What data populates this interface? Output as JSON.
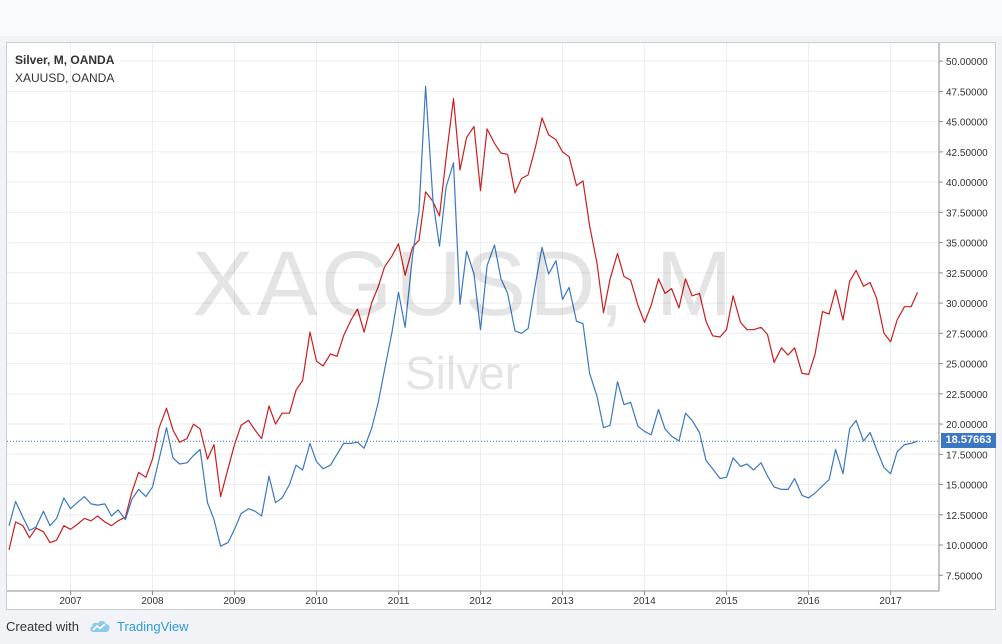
{
  "legend": {
    "series1": "Silver, M, OANDA",
    "series2": "XAUUSD, OANDA"
  },
  "watermark": {
    "symbol": "XAGUSD, M",
    "name": "Silver"
  },
  "price_badge": "18.57663",
  "footer": {
    "created_with": "Created with",
    "brand": "TradingView",
    "logo_icon": "tradingview-cloud-icon"
  },
  "colors": {
    "silver_line": "#3c78c2",
    "gold_line": "#cc1e1e",
    "badge": "#3c78c2",
    "brand": "#2d9bd8"
  },
  "chart_data": {
    "type": "line",
    "x_ticks": [
      "2007",
      "2008",
      "2009",
      "2010",
      "2011",
      "2012",
      "2013",
      "2014",
      "2015",
      "2016",
      "2017"
    ],
    "y_ticks": [
      "50.00000",
      "47.50000",
      "45.00000",
      "42.50000",
      "40.00000",
      "37.50000",
      "35.00000",
      "32.50000",
      "30.00000",
      "27.50000",
      "25.00000",
      "22.50000",
      "20.00000",
      "17.50000",
      "15.00000",
      "12.50000",
      "10.00000",
      "7.50000"
    ],
    "y_range": [
      6.2,
      51.5
    ],
    "x_range": [
      2006.25,
      2017.42
    ],
    "last_value_line": 18.57663,
    "series": [
      {
        "name": "Silver, M, OANDA",
        "color": "#3c78c2",
        "points": [
          [
            2006.25,
            11.6
          ],
          [
            2006.33,
            13.6
          ],
          [
            2006.42,
            12.3
          ],
          [
            2006.5,
            11.2
          ],
          [
            2006.58,
            11.5
          ],
          [
            2006.67,
            12.8
          ],
          [
            2006.75,
            11.6
          ],
          [
            2006.83,
            12.2
          ],
          [
            2006.92,
            13.9
          ],
          [
            2007.0,
            13.0
          ],
          [
            2007.08,
            13.5
          ],
          [
            2007.17,
            14.0
          ],
          [
            2007.25,
            13.4
          ],
          [
            2007.33,
            13.3
          ],
          [
            2007.42,
            13.4
          ],
          [
            2007.5,
            12.4
          ],
          [
            2007.58,
            12.9
          ],
          [
            2007.67,
            12.1
          ],
          [
            2007.75,
            13.8
          ],
          [
            2007.83,
            14.6
          ],
          [
            2007.92,
            14.0
          ],
          [
            2008.0,
            14.8
          ],
          [
            2008.08,
            17.1
          ],
          [
            2008.17,
            19.7
          ],
          [
            2008.25,
            17.2
          ],
          [
            2008.33,
            16.7
          ],
          [
            2008.42,
            16.8
          ],
          [
            2008.5,
            17.4
          ],
          [
            2008.58,
            17.9
          ],
          [
            2008.67,
            13.5
          ],
          [
            2008.75,
            12.1
          ],
          [
            2008.83,
            9.9
          ],
          [
            2008.92,
            10.2
          ],
          [
            2009.0,
            11.3
          ],
          [
            2009.08,
            12.6
          ],
          [
            2009.17,
            13.0
          ],
          [
            2009.25,
            12.8
          ],
          [
            2009.33,
            12.4
          ],
          [
            2009.42,
            15.7
          ],
          [
            2009.5,
            13.5
          ],
          [
            2009.58,
            13.9
          ],
          [
            2009.67,
            15.0
          ],
          [
            2009.75,
            16.6
          ],
          [
            2009.83,
            16.2
          ],
          [
            2009.92,
            18.4
          ],
          [
            2010.0,
            16.9
          ],
          [
            2010.08,
            16.3
          ],
          [
            2010.17,
            16.6
          ],
          [
            2010.25,
            17.5
          ],
          [
            2010.33,
            18.4
          ],
          [
            2010.42,
            18.4
          ],
          [
            2010.5,
            18.5
          ],
          [
            2010.58,
            18.0
          ],
          [
            2010.67,
            19.6
          ],
          [
            2010.75,
            21.7
          ],
          [
            2010.83,
            24.5
          ],
          [
            2010.92,
            27.6
          ],
          [
            2011.0,
            30.9
          ],
          [
            2011.08,
            28.0
          ],
          [
            2011.17,
            33.9
          ],
          [
            2011.25,
            37.6
          ],
          [
            2011.33,
            47.9
          ],
          [
            2011.42,
            38.4
          ],
          [
            2011.5,
            34.7
          ],
          [
            2011.58,
            39.6
          ],
          [
            2011.67,
            41.6
          ],
          [
            2011.75,
            29.9
          ],
          [
            2011.83,
            34.3
          ],
          [
            2011.92,
            32.4
          ],
          [
            2012.0,
            27.8
          ],
          [
            2012.08,
            33.1
          ],
          [
            2012.17,
            34.8
          ],
          [
            2012.25,
            32.0
          ],
          [
            2012.33,
            30.8
          ],
          [
            2012.42,
            27.7
          ],
          [
            2012.5,
            27.5
          ],
          [
            2012.58,
            27.9
          ],
          [
            2012.67,
            31.6
          ],
          [
            2012.75,
            34.6
          ],
          [
            2012.83,
            32.4
          ],
          [
            2012.92,
            33.5
          ],
          [
            2013.0,
            30.3
          ],
          [
            2013.08,
            31.3
          ],
          [
            2013.17,
            28.5
          ],
          [
            2013.25,
            28.3
          ],
          [
            2013.33,
            24.2
          ],
          [
            2013.42,
            22.3
          ],
          [
            2013.5,
            19.7
          ],
          [
            2013.58,
            19.9
          ],
          [
            2013.67,
            23.5
          ],
          [
            2013.75,
            21.6
          ],
          [
            2013.83,
            21.8
          ],
          [
            2013.92,
            19.8
          ],
          [
            2014.0,
            19.4
          ],
          [
            2014.08,
            19.1
          ],
          [
            2014.17,
            21.2
          ],
          [
            2014.25,
            19.6
          ],
          [
            2014.33,
            19.0
          ],
          [
            2014.42,
            18.6
          ],
          [
            2014.5,
            20.9
          ],
          [
            2014.58,
            20.3
          ],
          [
            2014.67,
            19.3
          ],
          [
            2014.75,
            17.0
          ],
          [
            2014.83,
            16.3
          ],
          [
            2014.92,
            15.5
          ],
          [
            2015.0,
            15.6
          ],
          [
            2015.08,
            17.2
          ],
          [
            2015.17,
            16.5
          ],
          [
            2015.25,
            16.7
          ],
          [
            2015.33,
            16.2
          ],
          [
            2015.42,
            16.8
          ],
          [
            2015.5,
            15.7
          ],
          [
            2015.58,
            14.8
          ],
          [
            2015.67,
            14.6
          ],
          [
            2015.75,
            14.6
          ],
          [
            2015.83,
            15.5
          ],
          [
            2015.92,
            14.1
          ],
          [
            2016.0,
            13.9
          ],
          [
            2016.08,
            14.3
          ],
          [
            2016.17,
            14.9
          ],
          [
            2016.25,
            15.4
          ],
          [
            2016.33,
            17.9
          ],
          [
            2016.42,
            15.9
          ],
          [
            2016.5,
            19.6
          ],
          [
            2016.58,
            20.3
          ],
          [
            2016.67,
            18.6
          ],
          [
            2016.75,
            19.3
          ],
          [
            2016.83,
            17.9
          ],
          [
            2016.92,
            16.4
          ],
          [
            2017.0,
            15.9
          ],
          [
            2017.08,
            17.7
          ],
          [
            2017.17,
            18.3
          ],
          [
            2017.25,
            18.4
          ],
          [
            2017.33,
            18.6
          ]
        ]
      },
      {
        "name": "XAUUSD, OANDA",
        "color": "#cc1e1e",
        "points": [
          [
            2006.25,
            9.6
          ],
          [
            2006.33,
            11.9
          ],
          [
            2006.42,
            11.6
          ],
          [
            2006.5,
            10.6
          ],
          [
            2006.58,
            11.4
          ],
          [
            2006.67,
            11.1
          ],
          [
            2006.75,
            10.2
          ],
          [
            2006.83,
            10.4
          ],
          [
            2006.92,
            11.6
          ],
          [
            2007.0,
            11.3
          ],
          [
            2007.08,
            11.7
          ],
          [
            2007.17,
            12.2
          ],
          [
            2007.25,
            12.0
          ],
          [
            2007.33,
            12.4
          ],
          [
            2007.42,
            11.9
          ],
          [
            2007.5,
            11.6
          ],
          [
            2007.58,
            12.0
          ],
          [
            2007.67,
            12.3
          ],
          [
            2007.75,
            14.4
          ],
          [
            2007.83,
            16.0
          ],
          [
            2007.92,
            15.6
          ],
          [
            2008.0,
            17.1
          ],
          [
            2008.08,
            19.7
          ],
          [
            2008.17,
            21.3
          ],
          [
            2008.25,
            19.5
          ],
          [
            2008.33,
            18.5
          ],
          [
            2008.42,
            18.8
          ],
          [
            2008.5,
            20.0
          ],
          [
            2008.58,
            19.6
          ],
          [
            2008.67,
            17.1
          ],
          [
            2008.75,
            18.3
          ],
          [
            2008.83,
            14.0
          ],
          [
            2008.92,
            16.3
          ],
          [
            2009.0,
            18.3
          ],
          [
            2009.08,
            19.9
          ],
          [
            2009.17,
            20.3
          ],
          [
            2009.25,
            19.5
          ],
          [
            2009.33,
            18.8
          ],
          [
            2009.42,
            21.5
          ],
          [
            2009.5,
            20.0
          ],
          [
            2009.58,
            20.9
          ],
          [
            2009.67,
            20.9
          ],
          [
            2009.75,
            22.8
          ],
          [
            2009.83,
            23.6
          ],
          [
            2009.92,
            27.6
          ],
          [
            2010.0,
            25.2
          ],
          [
            2010.08,
            24.8
          ],
          [
            2010.17,
            25.8
          ],
          [
            2010.25,
            25.6
          ],
          [
            2010.33,
            27.3
          ],
          [
            2010.42,
            28.6
          ],
          [
            2010.5,
            29.5
          ],
          [
            2010.58,
            27.6
          ],
          [
            2010.67,
            30.0
          ],
          [
            2010.75,
            31.3
          ],
          [
            2010.83,
            33.0
          ],
          [
            2010.92,
            33.9
          ],
          [
            2011.0,
            34.9
          ],
          [
            2011.08,
            32.3
          ],
          [
            2011.17,
            34.6
          ],
          [
            2011.25,
            35.2
          ],
          [
            2011.33,
            39.2
          ],
          [
            2011.42,
            38.4
          ],
          [
            2011.5,
            37.2
          ],
          [
            2011.58,
            42.0
          ],
          [
            2011.67,
            46.9
          ],
          [
            2011.75,
            41.0
          ],
          [
            2011.83,
            43.7
          ],
          [
            2011.92,
            44.6
          ],
          [
            2012.0,
            39.3
          ],
          [
            2012.08,
            44.4
          ],
          [
            2012.17,
            43.2
          ],
          [
            2012.25,
            42.4
          ],
          [
            2012.33,
            42.3
          ],
          [
            2012.42,
            39.1
          ],
          [
            2012.5,
            40.3
          ],
          [
            2012.58,
            40.6
          ],
          [
            2012.67,
            42.9
          ],
          [
            2012.75,
            45.3
          ],
          [
            2012.83,
            43.9
          ],
          [
            2012.92,
            43.5
          ],
          [
            2013.0,
            42.5
          ],
          [
            2013.08,
            42.1
          ],
          [
            2013.17,
            39.7
          ],
          [
            2013.25,
            40.1
          ],
          [
            2013.33,
            36.4
          ],
          [
            2013.42,
            33.3
          ],
          [
            2013.5,
            29.2
          ],
          [
            2013.58,
            32.0
          ],
          [
            2013.67,
            34.1
          ],
          [
            2013.75,
            32.2
          ],
          [
            2013.83,
            31.9
          ],
          [
            2013.92,
            29.8
          ],
          [
            2014.0,
            28.4
          ],
          [
            2014.08,
            29.8
          ],
          [
            2014.17,
            32.0
          ],
          [
            2014.25,
            30.8
          ],
          [
            2014.33,
            31.2
          ],
          [
            2014.42,
            29.6
          ],
          [
            2014.5,
            32.0
          ],
          [
            2014.58,
            30.6
          ],
          [
            2014.67,
            30.8
          ],
          [
            2014.75,
            28.5
          ],
          [
            2014.83,
            27.3
          ],
          [
            2014.92,
            27.2
          ],
          [
            2015.0,
            27.8
          ],
          [
            2015.08,
            30.6
          ],
          [
            2015.17,
            28.4
          ],
          [
            2015.25,
            27.8
          ],
          [
            2015.33,
            27.8
          ],
          [
            2015.42,
            28.0
          ],
          [
            2015.5,
            27.4
          ],
          [
            2015.58,
            25.1
          ],
          [
            2015.67,
            26.3
          ],
          [
            2015.75,
            25.7
          ],
          [
            2015.83,
            26.3
          ],
          [
            2015.92,
            24.2
          ],
          [
            2016.0,
            24.1
          ],
          [
            2016.08,
            25.8
          ],
          [
            2016.17,
            29.3
          ],
          [
            2016.25,
            29.1
          ],
          [
            2016.33,
            31.1
          ],
          [
            2016.42,
            28.6
          ],
          [
            2016.5,
            31.8
          ],
          [
            2016.58,
            32.7
          ],
          [
            2016.67,
            31.4
          ],
          [
            2016.75,
            31.7
          ],
          [
            2016.83,
            30.4
          ],
          [
            2016.92,
            27.5
          ],
          [
            2017.0,
            26.8
          ],
          [
            2017.08,
            28.6
          ],
          [
            2017.17,
            29.7
          ],
          [
            2017.25,
            29.7
          ],
          [
            2017.33,
            30.9
          ]
        ]
      }
    ]
  }
}
